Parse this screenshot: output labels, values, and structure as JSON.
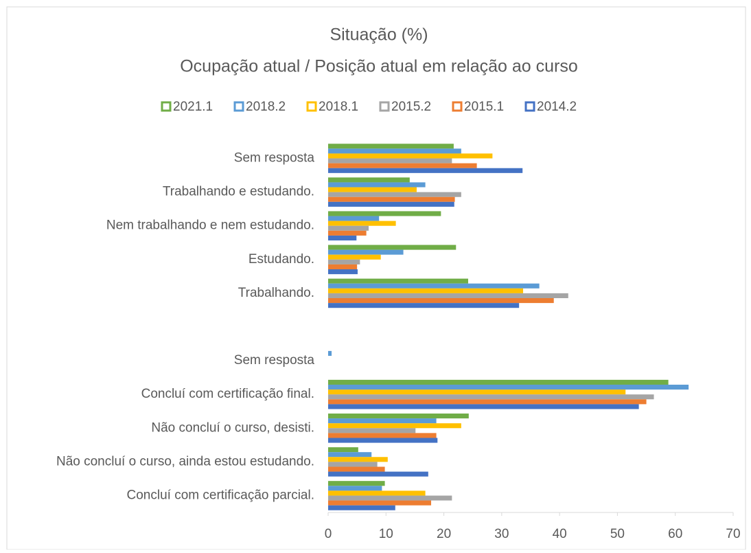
{
  "chart_data": {
    "type": "hbar",
    "title": "Situação (%)",
    "subtitle": "Ocupação atual / Posição atual em relação ao curso",
    "categories": [
      "Sem resposta",
      "Trabalhando e estudando.",
      "Nem trabalhando e nem estudando.",
      "Estudando.",
      "Trabalhando.",
      null,
      "Sem resposta",
      "Concluí com certificação final.",
      "Não concluí o curso, desisti.",
      "Não concluí o curso, ainda estou estudando.",
      "Concluí com certificação parcial."
    ],
    "series": [
      {
        "name": "2021.1",
        "color": "#70ad47",
        "values": [
          21.7,
          14.1,
          19.5,
          22.1,
          24.2,
          null,
          0,
          58.8,
          24.3,
          5.2,
          9.8
        ]
      },
      {
        "name": "2018.2",
        "color": "#5b9bd5",
        "values": [
          23.0,
          16.8,
          8.8,
          13.0,
          36.5,
          null,
          0.6,
          62.3,
          18.7,
          7.5,
          9.3
        ]
      },
      {
        "name": "2018.1",
        "color": "#ffc000",
        "values": [
          28.4,
          15.3,
          11.7,
          9.1,
          33.7,
          null,
          0,
          51.4,
          23.0,
          10.3,
          16.8
        ]
      },
      {
        "name": "2015.2",
        "color": "#a5a5a5",
        "values": [
          21.4,
          23.0,
          7.0,
          5.5,
          41.5,
          null,
          0,
          56.3,
          15.1,
          8.5,
          21.4
        ]
      },
      {
        "name": "2015.1",
        "color": "#ed7d31",
        "values": [
          25.7,
          21.9,
          6.6,
          5.0,
          39.0,
          null,
          0,
          55.0,
          18.7,
          9.8,
          17.8
        ]
      },
      {
        "name": "2014.2",
        "color": "#4472c4",
        "values": [
          33.6,
          21.8,
          4.9,
          5.1,
          33.0,
          null,
          0,
          53.7,
          18.9,
          17.3,
          11.6
        ]
      }
    ],
    "xlim": [
      0,
      70
    ],
    "xticks": [
      0,
      10,
      20,
      30,
      40,
      50,
      60,
      70
    ]
  }
}
